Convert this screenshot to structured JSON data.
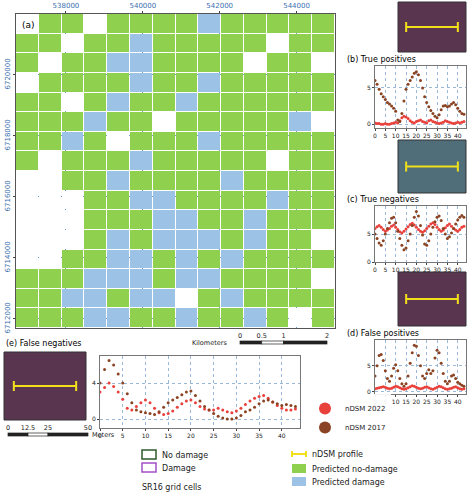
{
  "map": {
    "type": "map",
    "label": "(a)",
    "xlim": [
      536700,
      545000
    ],
    "ylim": [
      6711700,
      6722000
    ],
    "xticks": [
      538000,
      540000,
      542000,
      544000
    ],
    "yticks": [
      6712000,
      6714000,
      6716000,
      6718000,
      6720000
    ],
    "grid": true,
    "cell_colors": [
      "#ffffff",
      "#8fd14f",
      "#9cc3e6"
    ],
    "cells": [
      [
        0,
        1,
        1,
        0,
        1,
        1,
        1,
        1,
        2,
        1,
        1,
        1,
        1,
        1
      ],
      [
        1,
        1,
        0,
        1,
        1,
        2,
        1,
        1,
        1,
        1,
        1,
        0,
        1,
        1
      ],
      [
        1,
        0,
        1,
        1,
        2,
        2,
        1,
        1,
        1,
        1,
        0,
        1,
        1,
        0
      ],
      [
        0,
        1,
        1,
        1,
        1,
        2,
        1,
        1,
        2,
        1,
        1,
        1,
        1,
        1
      ],
      [
        1,
        1,
        0,
        1,
        2,
        1,
        1,
        2,
        1,
        1,
        1,
        1,
        1,
        1
      ],
      [
        1,
        1,
        1,
        2,
        1,
        1,
        0,
        1,
        1,
        1,
        1,
        1,
        2,
        0
      ],
      [
        1,
        1,
        2,
        1,
        0,
        1,
        1,
        1,
        2,
        1,
        1,
        1,
        1,
        1
      ],
      [
        1,
        0,
        1,
        1,
        1,
        2,
        1,
        1,
        1,
        1,
        1,
        0,
        1,
        1
      ],
      [
        0,
        0,
        1,
        1,
        2,
        1,
        1,
        1,
        1,
        2,
        1,
        1,
        1,
        1
      ],
      [
        0,
        0,
        0,
        1,
        1,
        2,
        2,
        1,
        1,
        1,
        1,
        2,
        1,
        1
      ],
      [
        0,
        0,
        0,
        1,
        1,
        1,
        2,
        2,
        1,
        1,
        2,
        1,
        1,
        1
      ],
      [
        0,
        0,
        0,
        1,
        2,
        1,
        2,
        2,
        2,
        1,
        2,
        1,
        1,
        0
      ],
      [
        0,
        0,
        1,
        1,
        2,
        2,
        1,
        2,
        1,
        2,
        1,
        1,
        1,
        1
      ],
      [
        1,
        1,
        1,
        2,
        2,
        2,
        1,
        2,
        2,
        1,
        1,
        1,
        1,
        0
      ],
      [
        1,
        1,
        2,
        2,
        1,
        2,
        2,
        0,
        1,
        2,
        1,
        1,
        1,
        1
      ],
      [
        1,
        1,
        1,
        2,
        2,
        1,
        1,
        2,
        1,
        1,
        2,
        1,
        0,
        1
      ]
    ]
  },
  "scale_bar": {
    "unit": "Kilometers",
    "ticks": [
      0,
      0.5,
      1,
      2
    ]
  },
  "image_scale": {
    "unit": "Meters",
    "ticks": [
      0,
      12.5,
      25,
      50
    ]
  },
  "chart_data": [
    {
      "type": "scatter",
      "title": "(b) True positives",
      "marker": "circle",
      "grid": true,
      "x": [
        0,
        1,
        2,
        3,
        4,
        5,
        6,
        7,
        8,
        9,
        10,
        11,
        12,
        13,
        14,
        15,
        16,
        17,
        18,
        19,
        20,
        21,
        22,
        23,
        24,
        25,
        26,
        27,
        28,
        29,
        30,
        31,
        32,
        33,
        34,
        35,
        36,
        37,
        38,
        39,
        40,
        41,
        42,
        43
      ],
      "xlim": [
        0,
        44
      ],
      "xticks": [
        0,
        5,
        10,
        15,
        20,
        25,
        30,
        35,
        40
      ],
      "ylim": [
        -0.5,
        8
      ],
      "yticks": [
        0,
        5
      ],
      "series": [
        {
          "name": "nDSM 2022",
          "color": "#e8413c",
          "values": [
            0.2,
            0.1,
            0.1,
            0,
            0,
            0.1,
            0,
            0,
            0.1,
            0.2,
            0.3,
            0.2,
            0.5,
            0.9,
            1.1,
            1,
            0.8,
            0.5,
            0.3,
            0.2,
            0.4,
            0.5,
            0.6,
            0.4,
            0.3,
            0.2,
            0.5,
            0.6,
            0.4,
            0.3,
            0.2,
            0.1,
            0.2,
            0.3,
            0.5,
            0.4,
            0.3,
            0.2,
            0.1,
            0.2,
            0.3,
            0.2,
            0.3,
            0.4
          ]
        },
        {
          "name": "nDSM 2017",
          "color": "#8b4423",
          "values": [
            6,
            5.5,
            4.8,
            4.2,
            3.8,
            3.4,
            3,
            2.8,
            2.5,
            2.2,
            1.8,
            0.6,
            0.4,
            1.5,
            3.2,
            4.8,
            5.5,
            6,
            6.5,
            7,
            7.2,
            6.8,
            6,
            5,
            3.8,
            3,
            2.4,
            1.9,
            1.5,
            1.1,
            0.9,
            1.3,
            2,
            2.5,
            2.6,
            2.4,
            2.5,
            2.8,
            3,
            2.7,
            2.2,
            1.8,
            1.5,
            1.4
          ]
        }
      ]
    },
    {
      "type": "scatter",
      "title": "(c) True negatives",
      "marker": "circle",
      "grid": true,
      "x": [
        0,
        1,
        2,
        3,
        4,
        5,
        6,
        7,
        8,
        9,
        10,
        11,
        12,
        13,
        14,
        15,
        16,
        17,
        18,
        19,
        20,
        21,
        22,
        23,
        24,
        25,
        26,
        27,
        28,
        29,
        30,
        31,
        32,
        33,
        34,
        35,
        36,
        37,
        38,
        39,
        40,
        41,
        42,
        43
      ],
      "xlim": [
        0,
        44
      ],
      "xticks": [
        0,
        5,
        10,
        15,
        20,
        25,
        30,
        35,
        40
      ],
      "ylim": [
        0,
        10
      ],
      "yticks": [
        0,
        5
      ],
      "series": [
        {
          "name": "nDSM 2022",
          "color": "#e8413c",
          "values": [
            6,
            6.3,
            6.5,
            6.2,
            5.8,
            5.5,
            5.7,
            6,
            6.4,
            6.6,
            6.2,
            5.8,
            5.4,
            5.2,
            5.5,
            5.9,
            6.3,
            6.7,
            6.9,
            6.6,
            6.2,
            5.8,
            5.5,
            5.3,
            5.6,
            6,
            6.4,
            6.8,
            7,
            6.7,
            6.2,
            5.8,
            5.5,
            5.7,
            6.1,
            6.5,
            6.8,
            6.4,
            6,
            5.7,
            5.5,
            5.8,
            6.2,
            6.4
          ]
        },
        {
          "name": "nDSM 2017",
          "color": "#8b4423",
          "values": [
            5,
            4.2,
            3.4,
            3,
            3.8,
            5,
            6,
            7,
            7.8,
            8,
            7,
            5.5,
            4.2,
            3,
            2.2,
            2.5,
            3.8,
            5,
            6.5,
            8,
            9,
            8.2,
            6.5,
            4.8,
            3.2,
            3,
            3.8,
            5,
            6.2,
            7.2,
            8,
            8.2,
            7.4,
            6,
            5,
            4.2,
            4.5,
            5.2,
            6,
            6.8,
            7.5,
            8,
            8.3,
            8
          ]
        }
      ]
    },
    {
      "type": "scatter",
      "title": "(d) False positives",
      "marker": "circle",
      "grid": true,
      "x": [
        0,
        1,
        2,
        3,
        4,
        5,
        6,
        7,
        8,
        9,
        10,
        11,
        12,
        13,
        14,
        15,
        16,
        17,
        18,
        19,
        20,
        21,
        22,
        23,
        24,
        25,
        26,
        27,
        28,
        29,
        30,
        31,
        32,
        33,
        34,
        35,
        36,
        37,
        38,
        39,
        40,
        41,
        42,
        43
      ],
      "xlim": [
        0,
        44
      ],
      "xticks": [
        0,
        5,
        10,
        15,
        20,
        25,
        30,
        35,
        40
      ],
      "ylim": [
        -0.5,
        10
      ],
      "yticks": [
        0,
        5
      ],
      "series": [
        {
          "name": "nDSM 2022",
          "color": "#e8413c",
          "values": [
            0.5,
            0.6,
            0.7,
            0.8,
            0.9,
            0.8,
            0.6,
            0.5,
            0.6,
            0.8,
            1,
            0.9,
            0.7,
            0.5,
            0.4,
            0.5,
            0.7,
            0.9,
            1.1,
            1,
            0.8,
            0.6,
            0.5,
            0.6,
            0.8,
            0.9,
            0.7,
            0.5,
            0.4,
            0.6,
            0.8,
            1,
            0.9,
            0.7,
            0.5,
            0.4,
            0.5,
            0.6,
            0.8,
            0.9,
            0.7,
            0.5,
            0.4,
            0.5
          ]
        },
        {
          "name": "nDSM 2017",
          "color": "#8b4423",
          "values": [
            3,
            5,
            7,
            7.2,
            6,
            4,
            2.5,
            2,
            3,
            4.5,
            5.2,
            4,
            2.5,
            1.5,
            1,
            1.5,
            3,
            5.5,
            7.5,
            9,
            8.8,
            7,
            5,
            3,
            2.5,
            3.5,
            4.2,
            3.5,
            4,
            6.5,
            8,
            7.5,
            5.5,
            3.5,
            2,
            1.5,
            2,
            3,
            3.2,
            2.5,
            1.8,
            1.5,
            1.2,
            1
          ]
        }
      ]
    },
    {
      "type": "scatter",
      "title": "(e) False negatives",
      "marker": "circle",
      "grid": true,
      "legend": "right",
      "x": [
        0,
        1,
        2,
        3,
        4,
        5,
        6,
        7,
        8,
        9,
        10,
        11,
        12,
        13,
        14,
        15,
        16,
        17,
        18,
        19,
        20,
        21,
        22,
        23,
        24,
        25,
        26,
        27,
        28,
        29,
        30,
        31,
        32,
        33,
        34,
        35,
        36,
        37,
        38,
        39,
        40,
        41,
        42,
        43
      ],
      "xlim": [
        0,
        44
      ],
      "xticks": [
        0,
        5,
        10,
        15,
        20,
        25,
        30,
        35,
        40
      ],
      "ylim": [
        -1,
        7
      ],
      "yticks": [
        0,
        4
      ],
      "series": [
        {
          "name": "nDSM 2022",
          "color": "#e8413c",
          "values": [
            3,
            3.5,
            4,
            3.6,
            3,
            2.2,
            1.2,
            1,
            1.4,
            1.8,
            2.1,
            1.8,
            1.2,
            0.7,
            0.5,
            0.6,
            0.9,
            1.3,
            1.7,
            2,
            2.1,
            1.8,
            1.4,
            1.1,
            1,
            1,
            1.2,
            1,
            0.8,
            0.7,
            0.9,
            1.2,
            1.6,
            2,
            2.3,
            2.5,
            2.6,
            2.3,
            1.9,
            1.5,
            1.2,
            1,
            1,
            1.1
          ]
        },
        {
          "name": "nDSM 2017",
          "color": "#8b4423",
          "values": [
            4,
            5.5,
            6.5,
            6,
            5,
            4,
            2.8,
            1.8,
            1,
            0.8,
            0.7,
            0.6,
            0.5,
            0.8,
            1.3,
            1.8,
            2.1,
            2.4,
            2.7,
            3,
            3.1,
            2.6,
            2,
            1.4,
            1,
            0.6,
            0.3,
            0.1,
            0,
            0,
            0.1,
            0.4,
            0.8,
            1,
            1.3,
            1.7,
            2,
            2.1,
            1.9,
            1.7,
            1.5,
            1.6,
            1.5,
            1.4
          ]
        }
      ]
    }
  ],
  "legend": {
    "grid_title": "SR16 grid cells",
    "grid_items": [
      {
        "label": "No damage",
        "color": "#2e5a2e"
      },
      {
        "label": "Damage",
        "color": "#a24fc8"
      }
    ],
    "profile": {
      "label": "nDSM profile",
      "color": "#f2e01a"
    },
    "prediction_items": [
      "Predicted no-damage",
      "Predicted damage"
    ]
  }
}
